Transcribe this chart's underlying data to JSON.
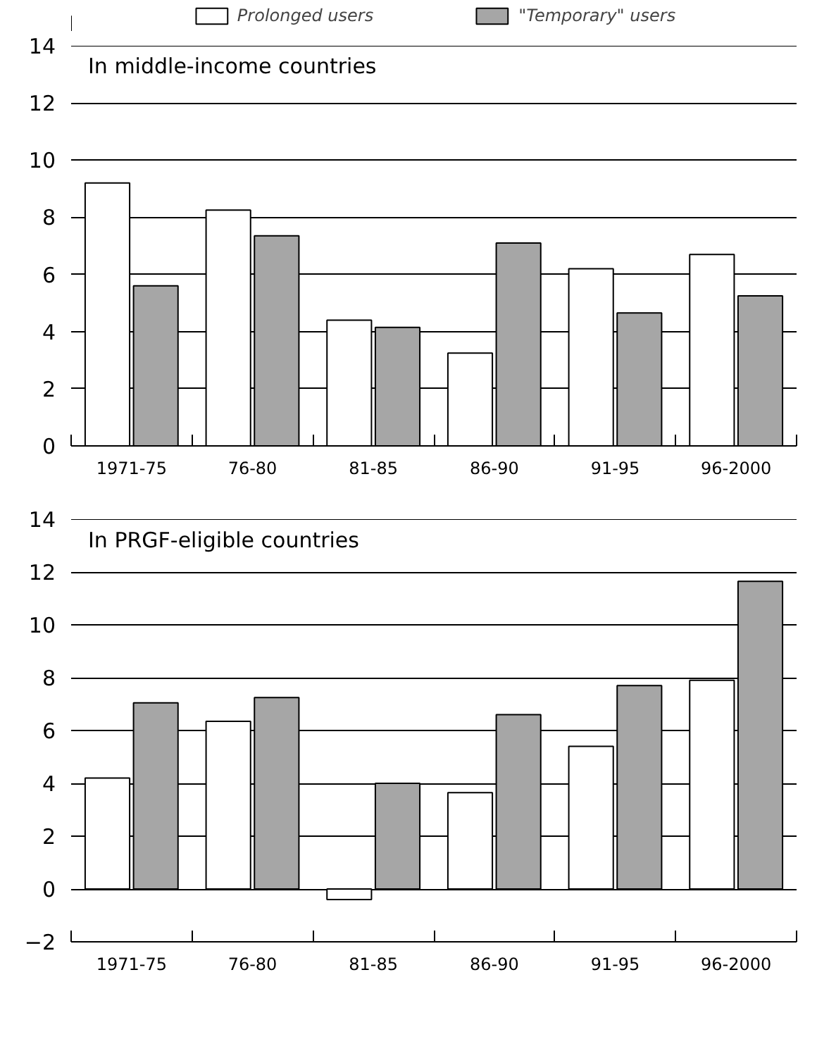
{
  "chart_data": [
    {
      "type": "bar",
      "title": "In middle-income countries",
      "categories": [
        "1971-75",
        "76-80",
        "81-85",
        "86-90",
        "91-95",
        "96-2000"
      ],
      "series": [
        {
          "name": "Prolonged users",
          "color": "#ffffff",
          "values": [
            9.2,
            8.25,
            4.4,
            3.25,
            6.2,
            6.7
          ]
        },
        {
          "name": "\"Temporary\" users",
          "color": "#a6a6a6",
          "values": [
            5.6,
            7.35,
            4.15,
            7.1,
            4.65,
            5.25
          ]
        }
      ],
      "ylim": [
        0,
        14
      ],
      "yticks": [
        0,
        2,
        4,
        6,
        8,
        10,
        12,
        14
      ],
      "grid": "y",
      "legend": "top"
    },
    {
      "type": "bar",
      "title": "In PRGF-eligible countries",
      "categories": [
        "1971-75",
        "76-80",
        "81-85",
        "86-90",
        "91-95",
        "96-2000"
      ],
      "series": [
        {
          "color": "#ffffff",
          "values": [
            4.2,
            6.35,
            -0.4,
            3.65,
            5.4,
            7.9
          ]
        },
        {
          "color": "#a6a6a6",
          "values": [
            7.05,
            7.25,
            4.0,
            6.6,
            7.7,
            11.65
          ]
        }
      ],
      "ylim": [
        -2,
        14
      ],
      "yticks": [
        {
          "value": -2,
          "label": "−2"
        },
        0,
        2,
        4,
        6,
        8,
        10,
        12,
        14
      ],
      "grid": "y"
    }
  ]
}
